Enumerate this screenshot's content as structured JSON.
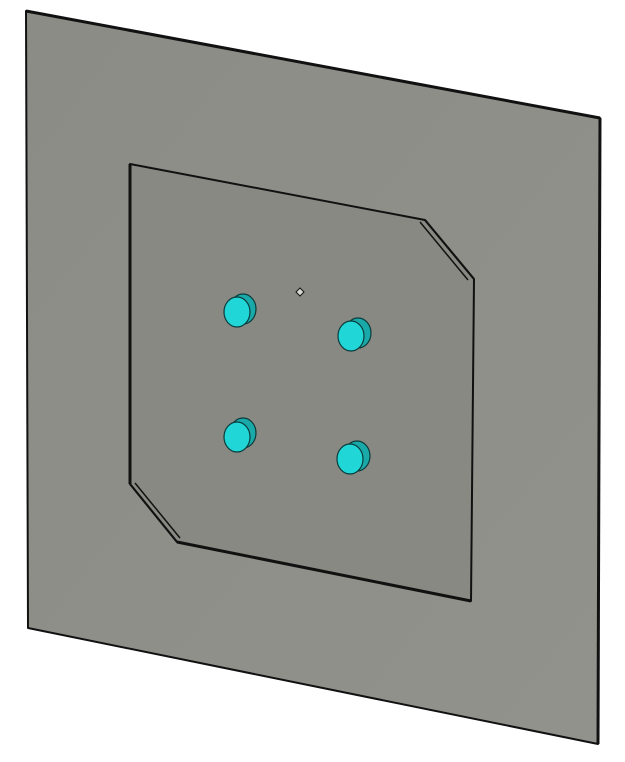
{
  "scene": {
    "background_color": "#ffffff",
    "plate_fill": "#8a8a84",
    "plate_fill_light": "#93938d",
    "edge_color": "#111111",
    "inner_face_fill": "#898983",
    "pin_color": "#21d6d6",
    "pin_side_color": "#1aa9a9",
    "pin_outline": "#0b3b3b",
    "pin_count": 4,
    "pins": [
      {
        "name": "pin-top-left"
      },
      {
        "name": "pin-top-right"
      },
      {
        "name": "pin-bottom-left"
      },
      {
        "name": "pin-bottom-right"
      }
    ],
    "center_marker": "small-diamond"
  }
}
